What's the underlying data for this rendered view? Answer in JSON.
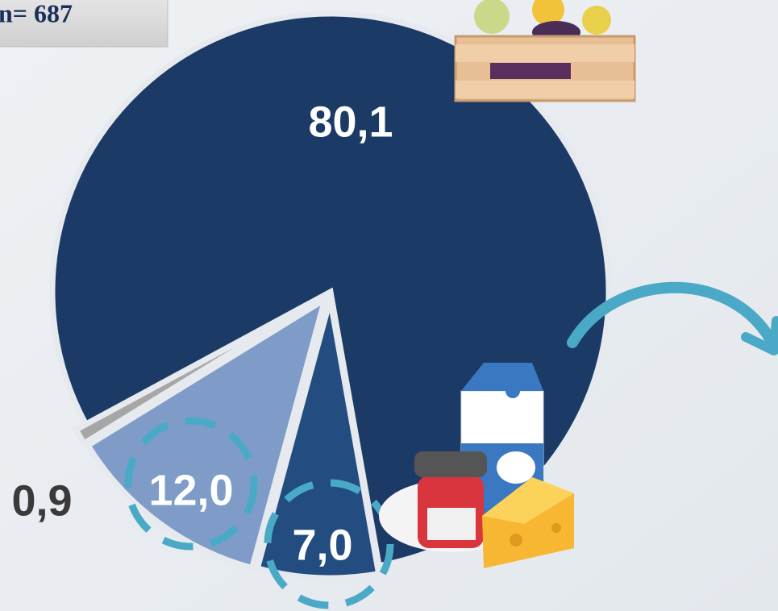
{
  "chart_data": {
    "type": "pie",
    "annotation": "n= 687",
    "categories": [
      null,
      null,
      null,
      null
    ],
    "values": [
      80.1,
      7.0,
      12.0,
      0.9
    ],
    "value_labels": [
      "80,1",
      "7,0",
      "12,0",
      "0,9"
    ],
    "colors": [
      "#1b3a66",
      "#234c80",
      "#7f9cc8",
      "#a6a6a6"
    ]
  }
}
